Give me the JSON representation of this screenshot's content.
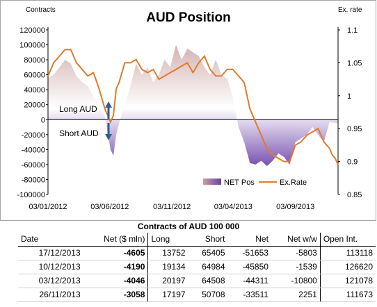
{
  "chart_data": {
    "type": "area",
    "title": "AUD Position",
    "y_left_label": "Contracts",
    "y_right_label": "Ex. rate",
    "y_left_ticks": [
      "120000",
      "100000",
      "80000",
      "60000",
      "40000",
      "20000",
      "0",
      "-20000",
      "-40000",
      "-60000",
      "-80000",
      "-100000"
    ],
    "y_left_range": [
      -100000,
      120000
    ],
    "y_right_ticks": [
      "1.1",
      "1.05",
      "1",
      "0.95",
      "0.9",
      "0.85"
    ],
    "y_right_range": [
      0.85,
      1.1
    ],
    "x_ticks": [
      "03/01/2012",
      "03/06/2012",
      "03/11/2012",
      "03/04/2013",
      "03/09/2013"
    ],
    "x_tick_dates": [
      "2012-01-03",
      "2012-06-03",
      "2012-11-03",
      "2013-04-03",
      "2013-09-03"
    ],
    "x_range": [
      "2012-01-03",
      "2013-12-17"
    ],
    "annotations": {
      "long": "Long AUD",
      "short": "Short AUD"
    },
    "legend": [
      "NET Pos",
      "Ex.Rate"
    ],
    "series": [
      {
        "name": "NET Pos",
        "x": [
          "2012-01-03",
          "2012-01-17",
          "2012-01-31",
          "2012-02-14",
          "2012-02-28",
          "2012-03-13",
          "2012-03-27",
          "2012-04-10",
          "2012-04-24",
          "2012-05-08",
          "2012-05-22",
          "2012-06-05",
          "2012-06-12",
          "2012-06-19",
          "2012-06-26",
          "2012-07-10",
          "2012-07-24",
          "2012-08-07",
          "2012-08-21",
          "2012-09-04",
          "2012-09-18",
          "2012-10-02",
          "2012-10-16",
          "2012-10-30",
          "2012-11-13",
          "2012-11-27",
          "2012-12-11",
          "2012-12-25",
          "2013-01-08",
          "2013-01-22",
          "2013-02-05",
          "2013-02-19",
          "2013-03-05",
          "2013-03-19",
          "2013-04-02",
          "2013-04-16",
          "2013-04-30",
          "2013-05-14",
          "2013-05-28",
          "2013-06-11",
          "2013-06-25",
          "2013-07-09",
          "2013-07-23",
          "2013-08-06",
          "2013-08-20",
          "2013-09-03",
          "2013-09-17",
          "2013-10-01",
          "2013-10-15",
          "2013-10-29",
          "2013-11-12",
          "2013-11-26",
          "2013-12-03",
          "2013-12-10",
          "2013-12-17"
        ],
        "values": [
          55000,
          60000,
          70000,
          80000,
          75000,
          58000,
          50000,
          45000,
          30000,
          20000,
          5000,
          -40000,
          -48000,
          -20000,
          -5000,
          20000,
          45000,
          75000,
          60000,
          70000,
          50000,
          60000,
          80000,
          70000,
          100000,
          80000,
          95000,
          90000,
          85000,
          70000,
          60000,
          80000,
          60000,
          55000,
          30000,
          -10000,
          -30000,
          -58000,
          -60000,
          -55000,
          -62000,
          -55000,
          -45000,
          -50000,
          -60000,
          -30000,
          -25000,
          -20000,
          -10000,
          -20000,
          -30000,
          -3058,
          -4046,
          -4190,
          -4605
        ]
      },
      {
        "name": "Ex.Rate",
        "x": [
          "2012-01-03",
          "2012-01-17",
          "2012-01-31",
          "2012-02-14",
          "2012-02-28",
          "2012-03-13",
          "2012-03-27",
          "2012-04-10",
          "2012-04-24",
          "2012-05-08",
          "2012-05-22",
          "2012-06-05",
          "2012-06-12",
          "2012-06-19",
          "2012-06-26",
          "2012-07-10",
          "2012-07-24",
          "2012-08-07",
          "2012-08-21",
          "2012-09-04",
          "2012-09-18",
          "2012-10-02",
          "2012-10-16",
          "2012-10-30",
          "2012-11-13",
          "2012-11-27",
          "2012-12-11",
          "2012-12-25",
          "2013-01-08",
          "2013-01-22",
          "2013-02-05",
          "2013-02-19",
          "2013-03-05",
          "2013-03-19",
          "2013-04-02",
          "2013-04-16",
          "2013-04-30",
          "2013-05-14",
          "2013-05-28",
          "2013-06-11",
          "2013-06-25",
          "2013-07-09",
          "2013-07-23",
          "2013-08-06",
          "2013-08-20",
          "2013-09-03",
          "2013-09-17",
          "2013-10-01",
          "2013-10-15",
          "2013-10-29",
          "2013-11-12",
          "2013-11-26",
          "2013-12-03",
          "2013-12-10",
          "2013-12-17"
        ],
        "values": [
          1.03,
          1.05,
          1.06,
          1.07,
          1.07,
          1.05,
          1.04,
          1.03,
          1.035,
          1.01,
          0.98,
          0.96,
          0.97,
          1.01,
          1.02,
          1.05,
          1.05,
          1.055,
          1.04,
          1.035,
          1.04,
          1.025,
          1.03,
          1.035,
          1.04,
          1.045,
          1.05,
          1.035,
          1.05,
          1.06,
          1.04,
          1.03,
          1.03,
          1.04,
          1.04,
          1.03,
          1.02,
          0.98,
          0.96,
          0.94,
          0.92,
          0.91,
          0.905,
          0.9,
          0.9,
          0.925,
          0.93,
          0.94,
          0.945,
          0.95,
          0.93,
          0.92,
          0.91,
          0.905,
          0.895
        ]
      }
    ]
  },
  "table": {
    "title": "Contracts of AUD 100 000",
    "headers": [
      "Date",
      "Net ($ mln)",
      "Long",
      "Short",
      "Net",
      "Net w/w",
      "Open Int."
    ],
    "rows": [
      [
        "17/12/2013",
        "-4605",
        "13752",
        "65405",
        "-51653",
        "-5803",
        "113118"
      ],
      [
        "10/12/2013",
        "-4190",
        "19134",
        "64984",
        "-45850",
        "-1539",
        "126620"
      ],
      [
        "03/12/2013",
        "-4046",
        "20197",
        "64508",
        "-44311",
        "-10800",
        "121078"
      ],
      [
        "26/11/2013",
        "-3058",
        "17197",
        "50708",
        "-33511",
        "2251",
        "111673"
      ]
    ]
  },
  "colors": {
    "area_top": "#c9a0a0",
    "area_bottom": "#6b3fa8",
    "line": "#e07b2a",
    "axis": "#000000",
    "arrow": "#2e5e8c"
  }
}
